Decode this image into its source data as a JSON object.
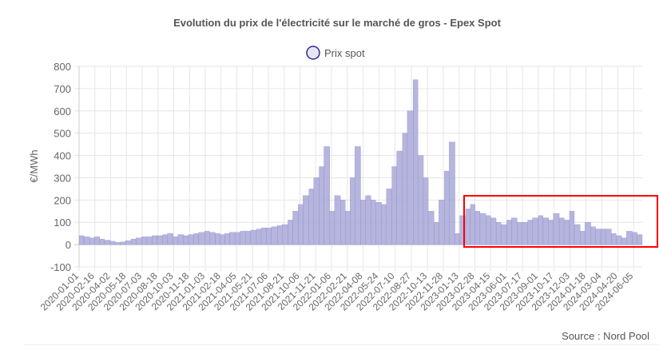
{
  "chart_data": {
    "type": "bar",
    "title": "Evolution du prix de l'électricité sur le marché de gros - Epex Spot",
    "ylabel": "€/MWh",
    "xlabel": "",
    "ylim": [
      -100,
      800
    ],
    "yticks": [
      -100,
      0,
      100,
      200,
      300,
      400,
      500,
      600,
      700,
      800
    ],
    "grid": true,
    "legend_position": "top",
    "xtick_labels": [
      "2020-01-01",
      "2020-02-16",
      "2020-04-02",
      "2020-05-18",
      "2020-07-03",
      "2020-08-18",
      "2020-10-03",
      "2020-11-18",
      "2021-01-03",
      "2021-02-18",
      "2021-04-05",
      "2021-05-21",
      "2021-07-06",
      "2021-08-21",
      "2021-10-06",
      "2021-11-21",
      "2022-01-06",
      "2022-02-21",
      "2022-04-08",
      "2022-05-24",
      "2022-07-10",
      "2022-08-27",
      "2022-10-13",
      "2022-11-28",
      "2023-01-13",
      "2023-02-28",
      "2023-04-15",
      "2023-06-01",
      "2023-07-17",
      "2023-09-01",
      "2023-10-17",
      "2023-12-03",
      "2024-01-18",
      "2024-03-04",
      "2024-04-20",
      "2024-06-05"
    ],
    "series": [
      {
        "name": "Prix spot",
        "color": "#a8a8d8",
        "border_color": "#8a8ac6",
        "x": [
          "2020-01-01",
          "2020-01-15",
          "2020-02-01",
          "2020-02-15",
          "2020-03-01",
          "2020-03-15",
          "2020-04-01",
          "2020-04-15",
          "2020-05-01",
          "2020-05-15",
          "2020-06-01",
          "2020-06-15",
          "2020-07-01",
          "2020-07-15",
          "2020-08-01",
          "2020-08-15",
          "2020-09-01",
          "2020-09-15",
          "2020-10-01",
          "2020-10-15",
          "2020-11-01",
          "2020-11-15",
          "2020-12-01",
          "2020-12-15",
          "2021-01-01",
          "2021-01-15",
          "2021-02-01",
          "2021-02-15",
          "2021-03-01",
          "2021-03-15",
          "2021-04-01",
          "2021-04-15",
          "2021-05-01",
          "2021-05-15",
          "2021-06-01",
          "2021-06-15",
          "2021-07-01",
          "2021-07-15",
          "2021-08-01",
          "2021-08-15",
          "2021-09-01",
          "2021-09-15",
          "2021-10-01",
          "2021-10-15",
          "2021-11-01",
          "2021-11-15",
          "2021-12-01",
          "2021-12-15",
          "2022-01-01",
          "2022-01-15",
          "2022-02-01",
          "2022-02-15",
          "2022-03-01",
          "2022-03-15",
          "2022-04-01",
          "2022-04-15",
          "2022-05-01",
          "2022-05-15",
          "2022-06-01",
          "2022-06-15",
          "2022-07-01",
          "2022-07-15",
          "2022-08-01",
          "2022-08-15",
          "2022-09-01",
          "2022-09-15",
          "2022-10-01",
          "2022-10-15",
          "2022-11-01",
          "2022-11-15",
          "2022-12-01",
          "2022-12-15",
          "2023-01-01",
          "2023-01-15",
          "2023-02-01",
          "2023-02-15",
          "2023-03-01",
          "2023-03-15",
          "2023-04-01",
          "2023-04-15",
          "2023-05-01",
          "2023-05-15",
          "2023-06-01",
          "2023-06-15",
          "2023-07-01",
          "2023-07-15",
          "2023-08-01",
          "2023-08-15",
          "2023-09-01",
          "2023-09-15",
          "2023-10-01",
          "2023-10-15",
          "2023-11-01",
          "2023-11-15",
          "2023-12-01",
          "2023-12-15",
          "2024-01-01",
          "2024-01-15",
          "2024-02-01",
          "2024-02-15",
          "2024-03-01",
          "2024-03-15",
          "2024-04-01",
          "2024-04-15",
          "2024-05-01",
          "2024-05-15",
          "2024-06-01",
          "2024-06-15"
        ],
        "values": [
          40,
          35,
          30,
          35,
          25,
          20,
          15,
          10,
          12,
          18,
          25,
          30,
          35,
          35,
          40,
          40,
          45,
          50,
          35,
          45,
          40,
          45,
          50,
          55,
          60,
          55,
          50,
          45,
          50,
          55,
          55,
          60,
          60,
          65,
          70,
          75,
          75,
          80,
          85,
          90,
          110,
          150,
          180,
          220,
          250,
          300,
          350,
          440,
          150,
          220,
          200,
          150,
          300,
          440,
          200,
          220,
          200,
          190,
          180,
          250,
          350,
          420,
          500,
          600,
          740,
          400,
          300,
          150,
          100,
          200,
          330,
          460,
          50,
          130,
          160,
          180,
          150,
          140,
          130,
          120,
          100,
          90,
          110,
          120,
          100,
          100,
          110,
          120,
          130,
          120,
          110,
          140,
          120,
          110,
          150,
          90,
          60,
          100,
          80,
          70,
          70,
          70,
          50,
          40,
          30,
          60,
          55,
          45
        ]
      }
    ]
  },
  "source": "Source : Nord Pool"
}
